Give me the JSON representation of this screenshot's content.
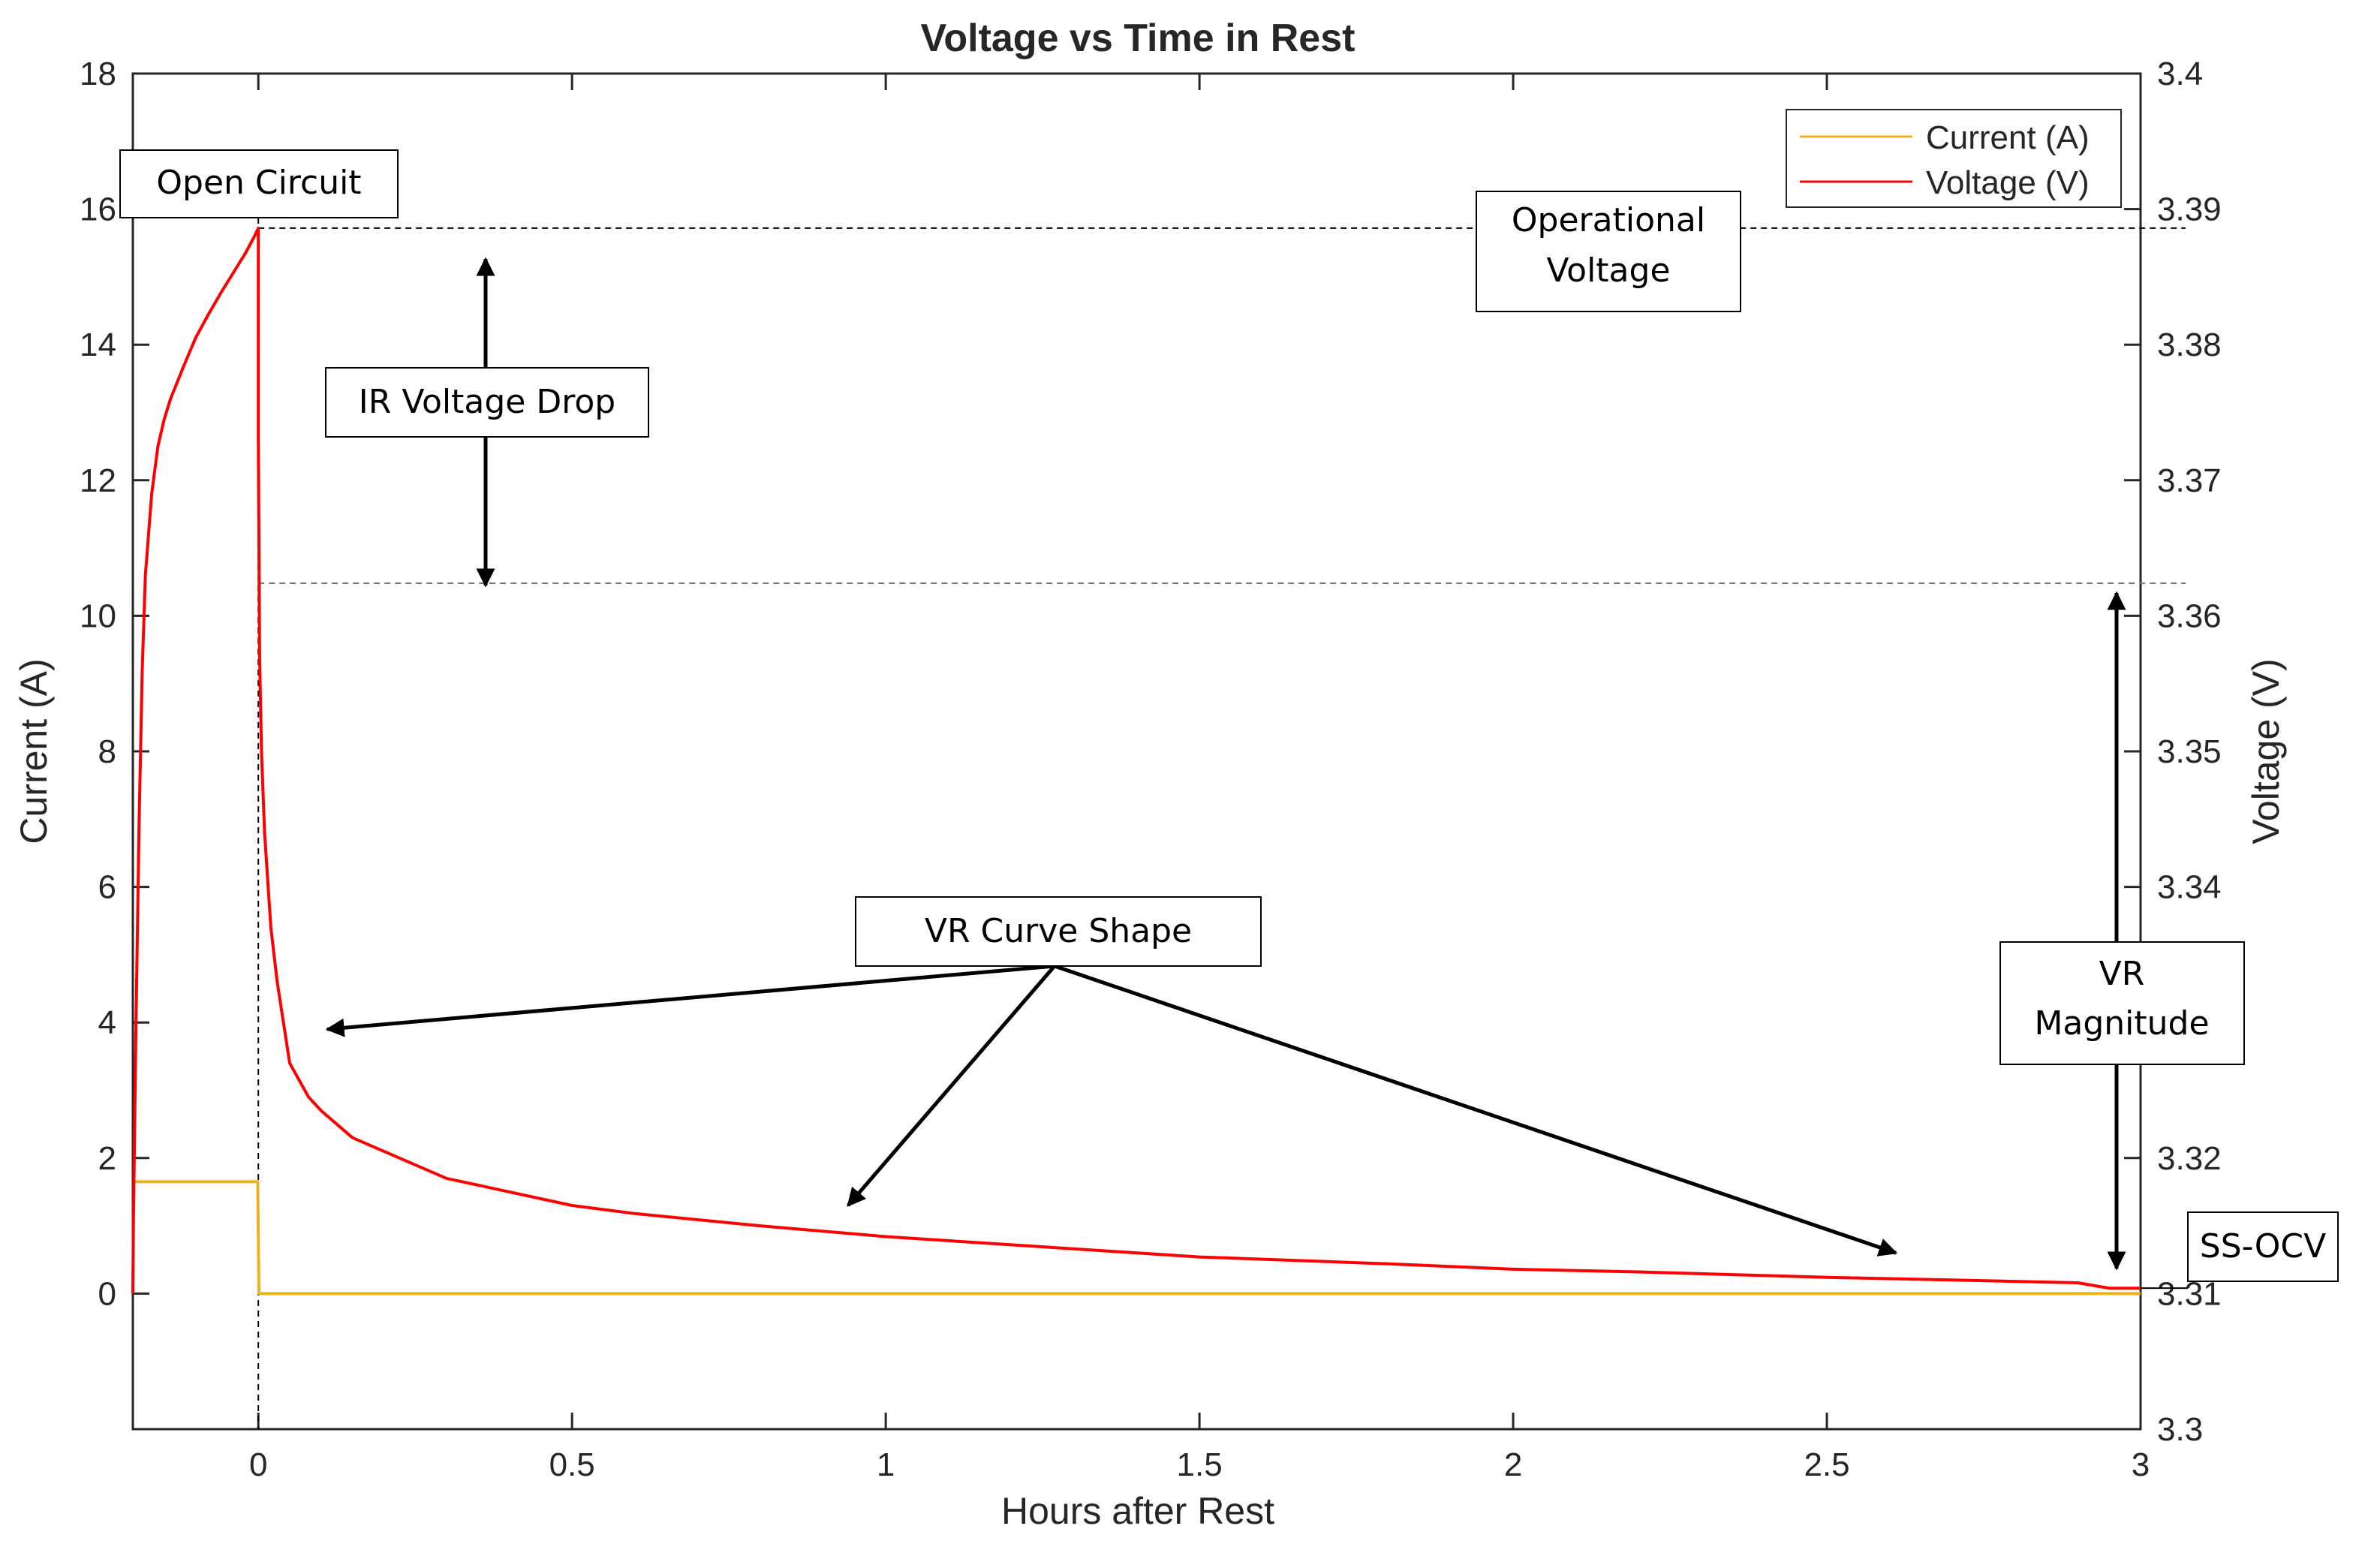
{
  "chart_data": {
    "type": "line",
    "title": "Voltage vs Time in Rest",
    "xlabel": "Hours after Rest",
    "ylabel_left": "Current (A)",
    "ylabel_right": "Voltage (V)",
    "xlim": [
      -0.2,
      3.0
    ],
    "ylim_left": [
      -2,
      18
    ],
    "ylim_right": [
      3.3,
      3.4
    ],
    "x_ticks": [
      "0",
      "0.5",
      "1",
      "1.5",
      "2",
      "2.5",
      "3"
    ],
    "x_tick_values": [
      0,
      0.5,
      1,
      1.5,
      2,
      2.5,
      3
    ],
    "y_left_ticks": [
      "0",
      "2",
      "4",
      "6",
      "8",
      "10",
      "12",
      "14",
      "16",
      "18"
    ],
    "y_left_tick_values": [
      0,
      2,
      4,
      6,
      8,
      10,
      12,
      14,
      16,
      18
    ],
    "y_right_ticks": [
      "3.3",
      "3.31",
      "3.32",
      "3.33",
      "3.34",
      "3.35",
      "3.36",
      "3.37",
      "3.38",
      "3.39",
      "3.4"
    ],
    "y_right_tick_values": [
      3.3,
      3.31,
      3.32,
      3.33,
      3.34,
      3.35,
      3.36,
      3.37,
      3.38,
      3.39,
      3.4
    ],
    "grid": false,
    "legend": {
      "position": "top-right",
      "entries": [
        "Current (A)",
        "Voltage (V)"
      ]
    },
    "series": [
      {
        "name": "Current (A)",
        "axis": "left",
        "color": "#EDB120",
        "x": [
          -0.2,
          -0.001,
          0.001,
          3.0
        ],
        "y": [
          1.65,
          1.65,
          0.0,
          0.0
        ]
      },
      {
        "name": "Voltage (V)",
        "axis": "right",
        "color": "#FF0000",
        "x": [
          -0.2,
          -0.199,
          -0.195,
          -0.19,
          -0.185,
          -0.18,
          -0.17,
          -0.16,
          -0.15,
          -0.14,
          -0.12,
          -0.1,
          -0.08,
          -0.06,
          -0.04,
          -0.02,
          -0.005,
          0.0,
          0.0,
          0.002,
          0.005,
          0.01,
          0.02,
          0.03,
          0.05,
          0.08,
          0.1,
          0.15,
          0.2,
          0.3,
          0.4,
          0.5,
          0.6,
          0.8,
          1.0,
          1.2,
          1.5,
          1.8,
          2.0,
          2.2,
          2.5,
          2.7,
          2.9,
          2.95,
          3.0
        ],
        "y": [
          3.31,
          3.3155,
          3.33,
          3.345,
          3.356,
          3.363,
          3.369,
          3.3725,
          3.3745,
          3.376,
          3.3783,
          3.3805,
          3.3822,
          3.3838,
          3.3853,
          3.3868,
          3.3881,
          3.3886,
          3.373,
          3.357,
          3.35,
          3.344,
          3.337,
          3.333,
          3.327,
          3.3245,
          3.3235,
          3.3215,
          3.3205,
          3.3185,
          3.3175,
          3.3165,
          3.3159,
          3.315,
          3.3142,
          3.3136,
          3.3127,
          3.3122,
          3.3118,
          3.3116,
          3.3112,
          3.311,
          3.3108,
          3.3104,
          3.3104
        ]
      }
    ],
    "reference_lines": [
      {
        "name": "operational-voltage",
        "axis": "right",
        "value": 3.3886,
        "style": "dashed"
      },
      {
        "name": "post-ir-voltage",
        "axis": "right",
        "value": 3.3624,
        "style": "dashed"
      },
      {
        "name": "rest-start",
        "axis": "x",
        "value": 0,
        "style": "dashed"
      }
    ],
    "annotations": {
      "open_circuit": "Open Circuit",
      "operational_voltage": [
        "Operational",
        "Voltage"
      ],
      "ir_voltage_drop": "IR Voltage Drop",
      "vr_curve_shape": "VR Curve Shape",
      "vr_magnitude": [
        "VR",
        "Magnitude"
      ],
      "ss_ocv": "SS-OCV"
    },
    "arrow_targets": [
      {
        "from": "vr_curve_shape",
        "x": 0.11,
        "y_left": 3.9
      },
      {
        "from": "vr_curve_shape",
        "x": 0.94,
        "y_left": 1.3
      },
      {
        "from": "vr_curve_shape",
        "x": 2.61,
        "y_left": 0.6
      }
    ]
  }
}
